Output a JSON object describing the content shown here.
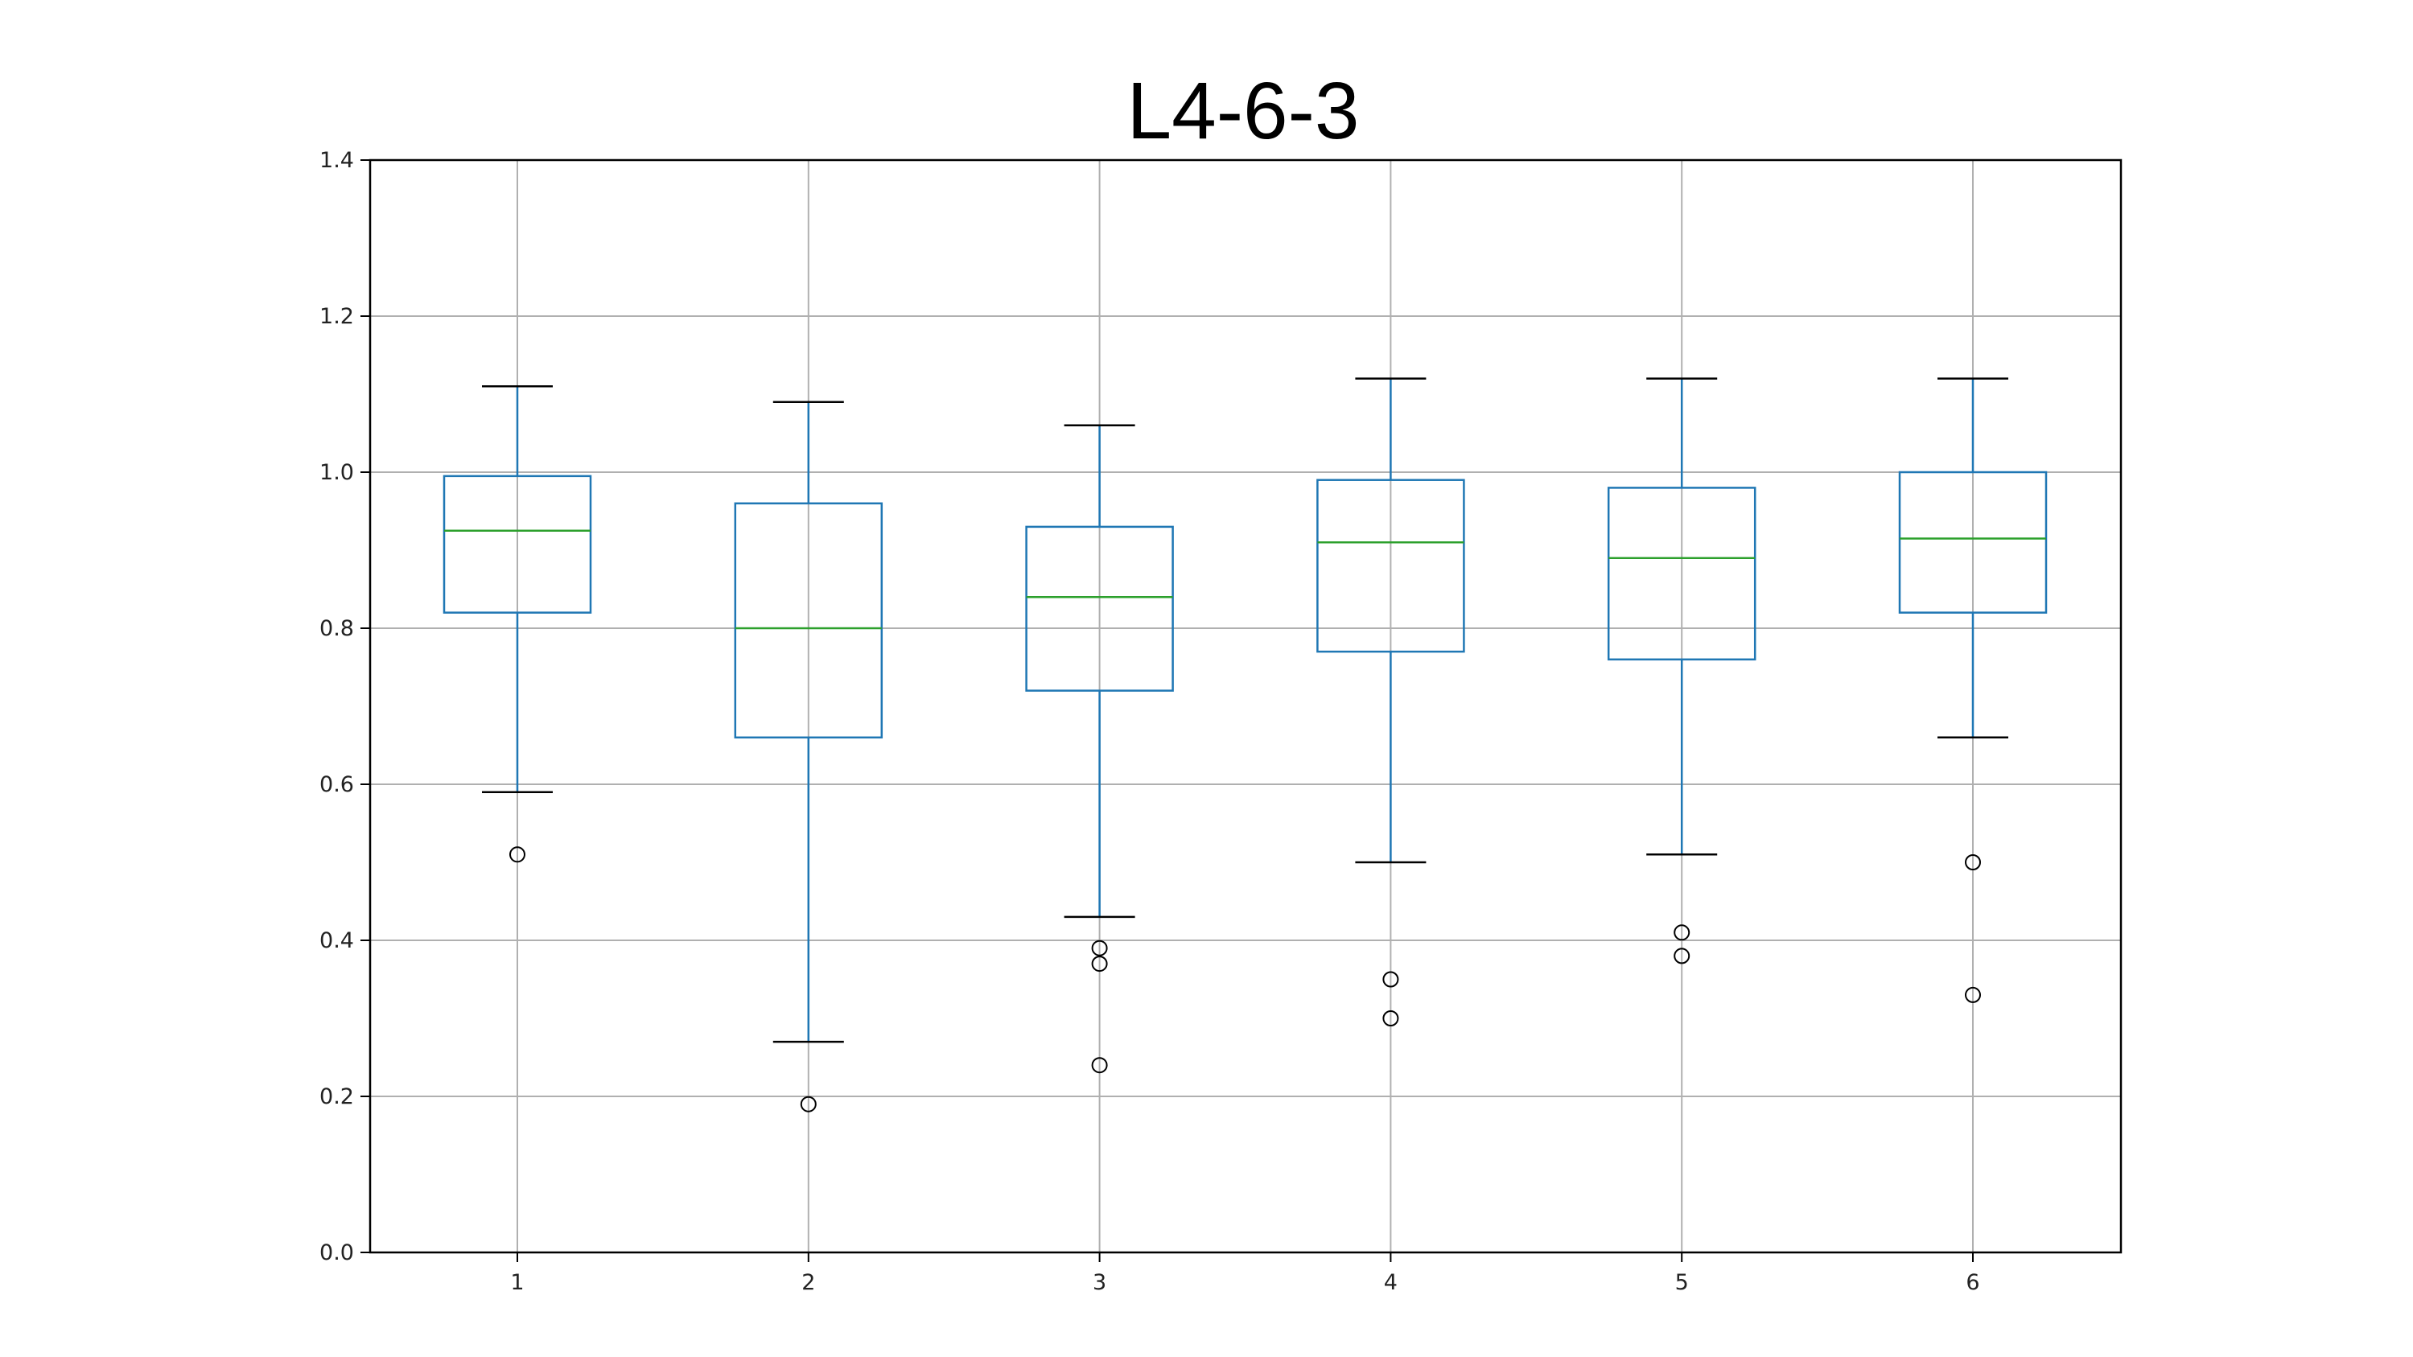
{
  "chart_data": {
    "type": "box",
    "title": "L4-6-3",
    "xlabel": "",
    "ylabel": "",
    "ylim": [
      0,
      1.4
    ],
    "yticks": [
      "0.0",
      "0.2",
      "0.4",
      "0.6",
      "0.8",
      "1.0",
      "1.2",
      "1.4"
    ],
    "categories": [
      "1",
      "2",
      "3",
      "4",
      "5",
      "6"
    ],
    "grid": true,
    "boxes": [
      {
        "category": "1",
        "whisker_low": 0.59,
        "q1": 0.82,
        "median": 0.925,
        "q3": 0.995,
        "whisker_high": 1.11,
        "outliers": [
          0.51
        ]
      },
      {
        "category": "2",
        "whisker_low": 0.27,
        "q1": 0.66,
        "median": 0.8,
        "q3": 0.96,
        "whisker_high": 1.09,
        "outliers": [
          0.19
        ]
      },
      {
        "category": "3",
        "whisker_low": 0.43,
        "q1": 0.72,
        "median": 0.84,
        "q3": 0.93,
        "whisker_high": 1.06,
        "outliers": [
          0.39,
          0.37,
          0.24
        ]
      },
      {
        "category": "4",
        "whisker_low": 0.5,
        "q1": 0.77,
        "median": 0.91,
        "q3": 0.99,
        "whisker_high": 1.12,
        "outliers": [
          0.35,
          0.3
        ]
      },
      {
        "category": "5",
        "whisker_low": 0.51,
        "q1": 0.76,
        "median": 0.89,
        "q3": 0.98,
        "whisker_high": 1.12,
        "outliers": [
          0.41,
          0.38
        ]
      },
      {
        "category": "6",
        "whisker_low": 0.66,
        "q1": 0.82,
        "median": 0.915,
        "q3": 1.0,
        "whisker_high": 1.12,
        "outliers": [
          0.5,
          0.33
        ]
      }
    ],
    "colors": {
      "box": "#1f77b4",
      "median": "#2ca02c",
      "whisker_cap": "#000000",
      "outlier": "#000000",
      "grid": "#b0b0b0",
      "frame": "#000000"
    }
  }
}
